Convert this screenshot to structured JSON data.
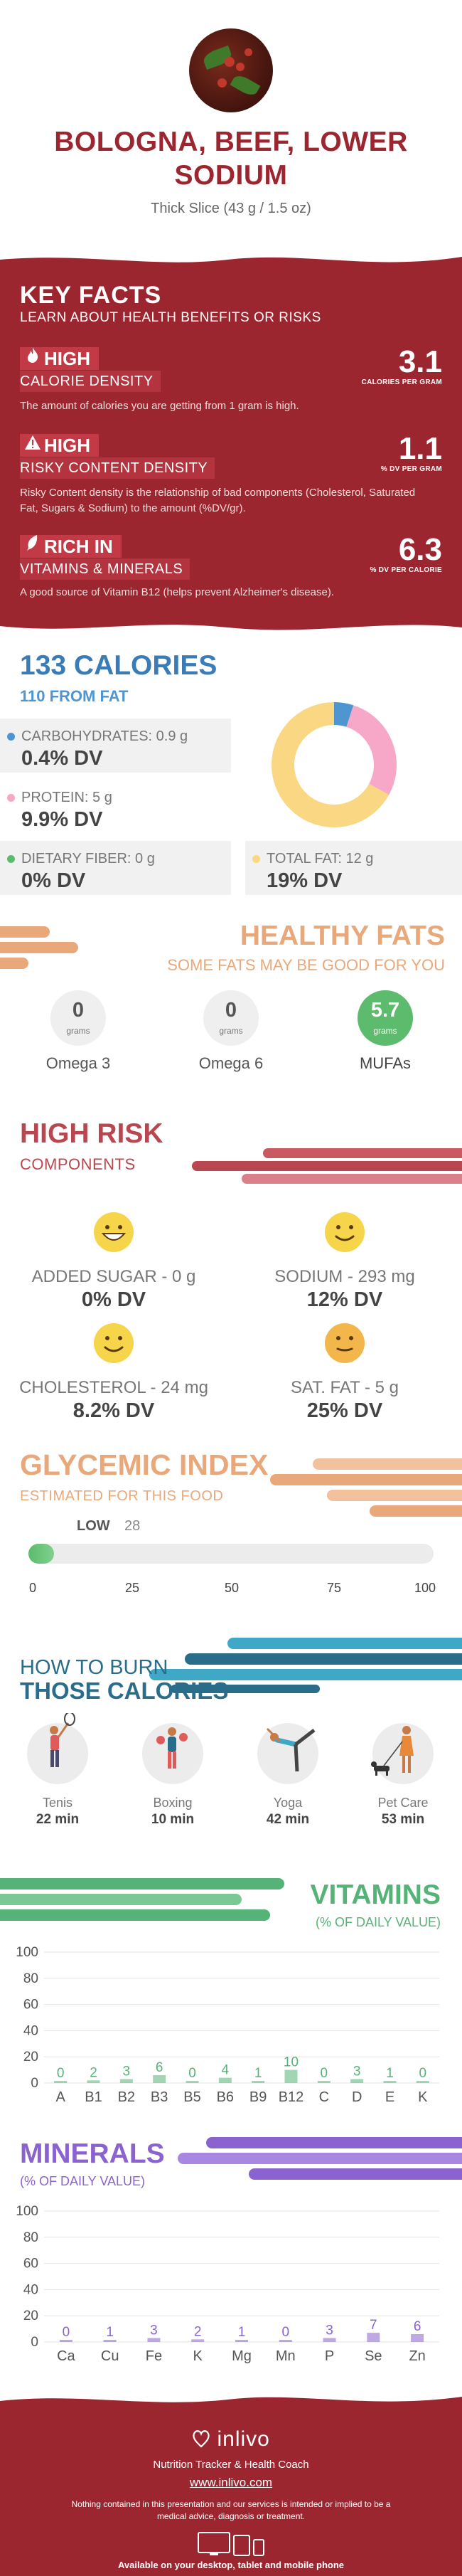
{
  "header": {
    "title_line1": "BOLOGNA, BEEF, LOWER",
    "title_line2": "SODIUM",
    "serving": "Thick Slice (43 g / 1.5 oz)"
  },
  "key_facts": {
    "title": "KEY FACTS",
    "subtitle": "LEARN ABOUT HEALTH BENEFITS OR RISKS",
    "items": [
      {
        "icon": "flame-icon",
        "level": "HIGH",
        "label": "CALORIE DENSITY",
        "description": "The amount of calories you are getting from 1 gram is high.",
        "value": "3.1",
        "unit": "CALORIES PER GRAM"
      },
      {
        "icon": "warning-icon",
        "level": "HIGH",
        "label": "RISKY CONTENT DENSITY",
        "description": "Risky Content density is the relationship of bad components (Cholesterol, Saturated Fat, Sugars & Sodium) to the amount (%DV/gr).",
        "value": "1.1",
        "unit": "% DV PER GRAM"
      },
      {
        "icon": "leaf-icon",
        "level": "RICH  IN",
        "label": "VITAMINS & MINERALS",
        "description": "A good source of Vitamin B12 (helps prevent Alzheimer's disease).",
        "value": "6.3",
        "unit": "% DV PER CALORIE"
      }
    ]
  },
  "calories": {
    "title": "133 CALORIES",
    "subtitle": "110 FROM FAT",
    "nutrients": [
      {
        "label": "CARBOHYDRATES: 0.9 g",
        "dv": "0.4% DV",
        "color": "#4f95d0"
      },
      {
        "label": "PROTEIN: 5 g",
        "dv": "9.9% DV",
        "color": "#f7a8c8"
      },
      {
        "label": "DIETARY FIBER: 0 g",
        "dv": "0% DV",
        "color": "#5cbb6c"
      },
      {
        "label": "TOTAL FAT: 12 g",
        "dv": "19% DV",
        "color": "#fad782"
      }
    ],
    "donut": [
      {
        "name": "carbohydrates",
        "value": 0.9,
        "color": "#4f95d0"
      },
      {
        "name": "protein",
        "value": 5,
        "color": "#f7a8c8"
      },
      {
        "name": "fat",
        "value": 12,
        "color": "#fad782"
      }
    ]
  },
  "healthy_fats": {
    "title": "HEALTHY FATS",
    "subtitle": "SOME FATS MAY BE GOOD FOR YOU",
    "unit": "grams",
    "items": [
      {
        "name": "Omega 3",
        "value": "0"
      },
      {
        "name": "Omega 6",
        "value": "0"
      },
      {
        "name": "MUFAs",
        "value": "5.7"
      }
    ]
  },
  "high_risk": {
    "title": "HIGH RISK",
    "subtitle": "COMPONENTS",
    "items": [
      {
        "label": "ADDED SUGAR - 0 g",
        "dv": "0% DV",
        "face": "grin"
      },
      {
        "label": "SODIUM - 293 mg",
        "dv": "12% DV",
        "face": "smile"
      },
      {
        "label": "CHOLESTEROL - 24 mg",
        "dv": "8.2% DV",
        "face": "smile"
      },
      {
        "label": "SAT. FAT - 5 g",
        "dv": "25% DV",
        "face": "neutral"
      }
    ]
  },
  "glycemic": {
    "title": "GLYCEMIC INDEX",
    "subtitle": "ESTIMATED FOR THIS FOOD",
    "level": "LOW",
    "value": "28",
    "fill": 0.28,
    "ticks": [
      "0",
      "25",
      "50",
      "75",
      "100"
    ]
  },
  "burn": {
    "title_line1": "HOW TO BURN",
    "title_line2": "THOSE CALORIES",
    "activities": [
      {
        "name": "Tenis",
        "time": "22 min",
        "icon": "tennis-player-icon"
      },
      {
        "name": "Boxing",
        "time": "10 min",
        "icon": "boxer-icon"
      },
      {
        "name": "Yoga",
        "time": "42 min",
        "icon": "yoga-pose-icon"
      },
      {
        "name": "Pet Care",
        "time": "53 min",
        "icon": "dog-walker-icon"
      }
    ]
  },
  "vitamins": {
    "title": "VITAMINS",
    "subtitle": "(% OF DAILY VALUE)"
  },
  "minerals": {
    "title": "MINERALS",
    "subtitle": "(% OF DAILY VALUE)"
  },
  "chart_data": [
    {
      "type": "bar",
      "title": "VITAMINS",
      "subtitle": "(% OF DAILY VALUE)",
      "categories": [
        "A",
        "B1",
        "B2",
        "B3",
        "B5",
        "B6",
        "B9",
        "B12",
        "C",
        "D",
        "E",
        "K"
      ],
      "values": [
        0,
        2,
        3,
        6,
        0,
        4,
        1,
        10,
        0,
        3,
        1,
        0
      ],
      "ylim": [
        0,
        100
      ],
      "yticks": [
        0,
        20,
        40,
        60,
        80,
        100
      ],
      "color": "#55b377",
      "grid": true
    },
    {
      "type": "bar",
      "title": "MINERALS",
      "subtitle": "(% OF DAILY VALUE)",
      "categories": [
        "Ca",
        "Cu",
        "Fe",
        "K",
        "Mg",
        "Mn",
        "P",
        "Se",
        "Zn"
      ],
      "values": [
        0,
        1,
        3,
        2,
        1,
        0,
        3,
        7,
        6
      ],
      "ylim": [
        0,
        100
      ],
      "yticks": [
        0,
        20,
        40,
        60,
        80,
        100
      ],
      "color": "#8b63d0",
      "grid": true
    }
  ],
  "footer": {
    "brand": "inlivo",
    "tagline": "Nutrition Tracker & Health Coach",
    "url": "www.inlivo.com",
    "disclaimer": "Nothing contained in this presentation and our services is intended or implied to be a medical advice, diagnosis or treatment.",
    "available": "Available on your desktop, tablet and mobile phone"
  }
}
